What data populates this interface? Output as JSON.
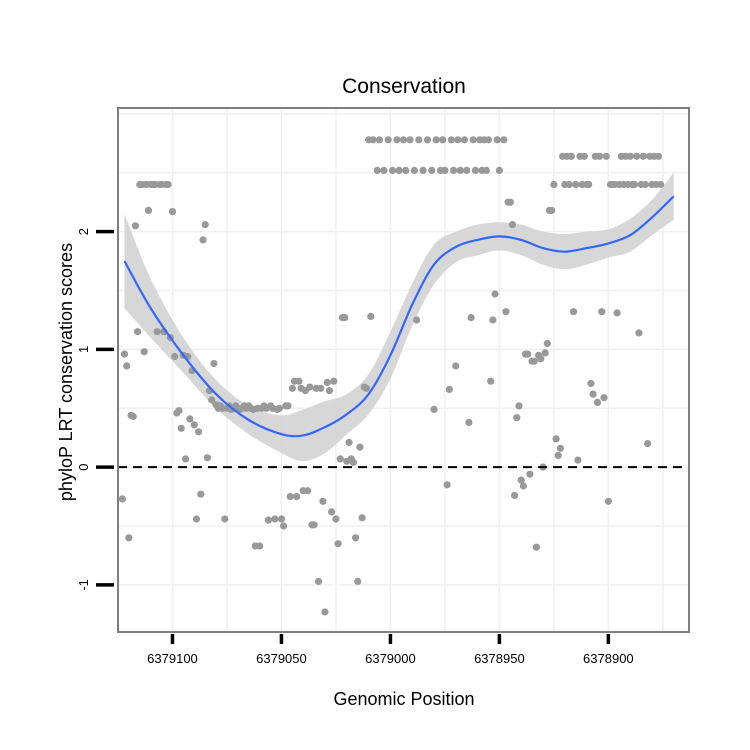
{
  "chart_data": {
    "type": "scatter",
    "title": "Conservation",
    "xlabel": "Genomic Position",
    "ylabel": "phyloP LRT conservation scores",
    "x_reversed": true,
    "xlim": [
      6379125,
      6378863
    ],
    "ylim": [
      -1.4,
      3.05
    ],
    "x_ticks": [
      6379100,
      6379050,
      6379000,
      6378950,
      6378900
    ],
    "x_tick_labels": [
      "6379100",
      "6379050",
      "6379000",
      "6378950",
      "6378900"
    ],
    "y_ticks": [
      -1,
      0,
      1,
      2
    ],
    "y_tick_labels": [
      "-1",
      "0",
      "1",
      "2"
    ],
    "reference_line": {
      "y": 0,
      "style": "dashed",
      "color": "#000000"
    },
    "colors": {
      "points": "#999999",
      "smooth": "#3366ff",
      "ribbon": "#d3d3d3",
      "panel_border": "#7f7f7f",
      "grid": "#f0f0f0"
    },
    "smooth": {
      "x": [
        6379122,
        6379110,
        6379095,
        6379080,
        6379065,
        6379050,
        6379040,
        6379030,
        6379020,
        6379010,
        6379000,
        6378990,
        6378980,
        6378970,
        6378960,
        6378950,
        6378940,
        6378930,
        6378920,
        6378910,
        6378900,
        6378890,
        6378880,
        6378870
      ],
      "y": [
        1.75,
        1.35,
        0.95,
        0.62,
        0.4,
        0.28,
        0.27,
        0.34,
        0.45,
        0.62,
        0.95,
        1.38,
        1.72,
        1.87,
        1.93,
        1.96,
        1.93,
        1.86,
        1.83,
        1.86,
        1.9,
        1.97,
        2.12,
        2.3
      ],
      "lower": [
        1.35,
        1.1,
        0.8,
        0.5,
        0.28,
        0.12,
        0.05,
        0.12,
        0.28,
        0.45,
        0.75,
        1.2,
        1.55,
        1.74,
        1.8,
        1.84,
        1.8,
        1.72,
        1.68,
        1.72,
        1.78,
        1.83,
        1.97,
        2.1
      ],
      "upper": [
        2.15,
        1.6,
        1.1,
        0.74,
        0.52,
        0.44,
        0.49,
        0.56,
        0.62,
        0.79,
        1.15,
        1.56,
        1.89,
        2.0,
        2.06,
        2.08,
        2.06,
        2.0,
        1.98,
        2.0,
        2.02,
        2.11,
        2.27,
        2.5
      ]
    },
    "points": [
      [
        6379123,
        -0.27
      ],
      [
        6379122,
        0.96
      ],
      [
        6379121,
        0.86
      ],
      [
        6379120,
        -0.6
      ],
      [
        6379119,
        0.44
      ],
      [
        6379118,
        0.43
      ],
      [
        6379117,
        2.05
      ],
      [
        6379116,
        1.15
      ],
      [
        6379115,
        2.4
      ],
      [
        6379114,
        2.4
      ],
      [
        6379113,
        0.98
      ],
      [
        6379112,
        2.4
      ],
      [
        6379111,
        2.18
      ],
      [
        6379110,
        2.4
      ],
      [
        6379109,
        2.4
      ],
      [
        6379108,
        2.4
      ],
      [
        6379107,
        1.15
      ],
      [
        6379106,
        2.4
      ],
      [
        6379105,
        2.4
      ],
      [
        6379104,
        1.15
      ],
      [
        6379103,
        2.4
      ],
      [
        6379102,
        2.4
      ],
      [
        6379101,
        1.1
      ],
      [
        6379100,
        2.17
      ],
      [
        6379099,
        0.94
      ],
      [
        6379098,
        0.46
      ],
      [
        6379097,
        0.48
      ],
      [
        6379096,
        0.33
      ],
      [
        6379095,
        0.95
      ],
      [
        6379094,
        0.07
      ],
      [
        6379093,
        0.94
      ],
      [
        6379092,
        0.41
      ],
      [
        6379091,
        0.82
      ],
      [
        6379090,
        0.36
      ],
      [
        6379089,
        -0.44
      ],
      [
        6379088,
        0.3
      ],
      [
        6379087,
        -0.23
      ],
      [
        6379086,
        1.93
      ],
      [
        6379085,
        2.06
      ],
      [
        6379084,
        0.08
      ],
      [
        6379083,
        0.65
      ],
      [
        6379082,
        0.57
      ],
      [
        6379081,
        0.88
      ],
      [
        6379080,
        0.53
      ],
      [
        6379079,
        0.5
      ],
      [
        6379078,
        0.52
      ],
      [
        6379077,
        0.5
      ],
      [
        6379076,
        -0.44
      ],
      [
        6379075,
        0.5
      ],
      [
        6379074,
        0.52
      ],
      [
        6379073,
        0.49
      ],
      [
        6379072,
        0.5
      ],
      [
        6379071,
        0.52
      ],
      [
        6379070,
        0.5
      ],
      [
        6379069,
        0.49
      ],
      [
        6379068,
        0.5
      ],
      [
        6379067,
        0.52
      ],
      [
        6379066,
        0.5
      ],
      [
        6379065,
        0.52
      ],
      [
        6379064,
        0.5
      ],
      [
        6379063,
        0.49
      ],
      [
        6379062,
        -0.67
      ],
      [
        6379061,
        0.5
      ],
      [
        6379060,
        -0.67
      ],
      [
        6379059,
        0.5
      ],
      [
        6379058,
        0.52
      ],
      [
        6379057,
        0.5
      ],
      [
        6379056,
        -0.45
      ],
      [
        6379055,
        0.52
      ],
      [
        6379054,
        0.5
      ],
      [
        6379053,
        -0.44
      ],
      [
        6379052,
        0.49
      ],
      [
        6379051,
        0.5
      ],
      [
        6379050,
        -0.44
      ],
      [
        6379049,
        -0.5
      ],
      [
        6379048,
        0.52
      ],
      [
        6379047,
        0.52
      ],
      [
        6379046,
        -0.25
      ],
      [
        6379045,
        0.67
      ],
      [
        6379044,
        0.73
      ],
      [
        6379043,
        -0.25
      ],
      [
        6379042,
        0.73
      ],
      [
        6379041,
        0.67
      ],
      [
        6379040,
        -0.2
      ],
      [
        6379039,
        0.65
      ],
      [
        6379038,
        -0.2
      ],
      [
        6379037,
        0.68
      ],
      [
        6379036,
        -0.49
      ],
      [
        6379035,
        -0.49
      ],
      [
        6379034,
        0.67
      ],
      [
        6379033,
        -0.97
      ],
      [
        6379032,
        0.67
      ],
      [
        6379031,
        -0.29
      ],
      [
        6379030,
        -1.23
      ],
      [
        6379029,
        0.72
      ],
      [
        6379028,
        0.65
      ],
      [
        6379027,
        -0.38
      ],
      [
        6379026,
        0.73
      ],
      [
        6379025,
        -0.44
      ],
      [
        6379024,
        -0.65
      ],
      [
        6379023,
        0.07
      ],
      [
        6379022,
        1.27
      ],
      [
        6379021,
        1.27
      ],
      [
        6379020,
        0.05
      ],
      [
        6379019,
        0.21
      ],
      [
        6379018,
        0.07
      ],
      [
        6379017,
        0.04
      ],
      [
        6379016,
        -0.6
      ],
      [
        6379015,
        -0.97
      ],
      [
        6379014,
        0.17
      ],
      [
        6379013,
        -0.43
      ],
      [
        6379012,
        0.68
      ],
      [
        6379011,
        0.67
      ],
      [
        6379010,
        2.78
      ],
      [
        6379009,
        1.28
      ],
      [
        6379008,
        2.78
      ],
      [
        6379006,
        2.52
      ],
      [
        6379005,
        2.78
      ],
      [
        6379003,
        2.52
      ],
      [
        6379001,
        2.78
      ],
      [
        6378999,
        2.52
      ],
      [
        6378997,
        2.78
      ],
      [
        6378996,
        2.52
      ],
      [
        6378994,
        2.78
      ],
      [
        6378993,
        2.52
      ],
      [
        6378991,
        2.78
      ],
      [
        6378989,
        2.52
      ],
      [
        6378988,
        1.25
      ],
      [
        6378987,
        2.78
      ],
      [
        6378985,
        2.52
      ],
      [
        6378983,
        2.78
      ],
      [
        6378981,
        2.52
      ],
      [
        6378980,
        0.49
      ],
      [
        6378979,
        2.78
      ],
      [
        6378977,
        2.52
      ],
      [
        6378976,
        2.78
      ],
      [
        6378975,
        2.52
      ],
      [
        6378974,
        -0.15
      ],
      [
        6378973,
        0.66
      ],
      [
        6378972,
        2.78
      ],
      [
        6378971,
        2.52
      ],
      [
        6378970,
        0.86
      ],
      [
        6378969,
        2.78
      ],
      [
        6378968,
        2.52
      ],
      [
        6378966,
        2.78
      ],
      [
        6378965,
        2.52
      ],
      [
        6378964,
        0.38
      ],
      [
        6378963,
        1.27
      ],
      [
        6378962,
        2.78
      ],
      [
        6378961,
        2.52
      ],
      [
        6378959,
        2.78
      ],
      [
        6378958,
        2.52
      ],
      [
        6378957,
        2.78
      ],
      [
        6378956,
        2.52
      ],
      [
        6378955,
        2.78
      ],
      [
        6378954,
        0.73
      ],
      [
        6378953,
        1.25
      ],
      [
        6378952,
        1.47
      ],
      [
        6378951,
        2.78
      ],
      [
        6378950,
        2.52
      ],
      [
        6378948,
        2.78
      ],
      [
        6378947,
        1.32
      ],
      [
        6378946,
        2.25
      ],
      [
        6378945,
        2.25
      ],
      [
        6378944,
        2.06
      ],
      [
        6378943,
        -0.24
      ],
      [
        6378942,
        0.42
      ],
      [
        6378941,
        0.52
      ],
      [
        6378940,
        -0.11
      ],
      [
        6378939,
        -0.16
      ],
      [
        6378938,
        0.96
      ],
      [
        6378937,
        0.96
      ],
      [
        6378936,
        -0.06
      ],
      [
        6378935,
        0.9
      ],
      [
        6378934,
        0.9
      ],
      [
        6378933,
        -0.68
      ],
      [
        6378932,
        0.95
      ],
      [
        6378931,
        0.92
      ],
      [
        6378930,
        0.0
      ],
      [
        6378929,
        0.97
      ],
      [
        6378928,
        1.05
      ],
      [
        6378927,
        2.18
      ],
      [
        6378926,
        2.18
      ],
      [
        6378925,
        2.4
      ],
      [
        6378924,
        0.24
      ],
      [
        6378923,
        0.1
      ],
      [
        6378922,
        0.16
      ],
      [
        6378921,
        2.64
      ],
      [
        6378920,
        2.4
      ],
      [
        6378919,
        2.64
      ],
      [
        6378918,
        2.4
      ],
      [
        6378917,
        2.64
      ],
      [
        6378916,
        1.32
      ],
      [
        6378915,
        2.4
      ],
      [
        6378914,
        0.06
      ],
      [
        6378913,
        2.64
      ],
      [
        6378912,
        2.4
      ],
      [
        6378911,
        2.64
      ],
      [
        6378910,
        2.4
      ],
      [
        6378909,
        2.4
      ],
      [
        6378908,
        0.71
      ],
      [
        6378907,
        0.62
      ],
      [
        6378906,
        2.64
      ],
      [
        6378905,
        0.55
      ],
      [
        6378904,
        2.64
      ],
      [
        6378903,
        1.32
      ],
      [
        6378902,
        0.59
      ],
      [
        6378901,
        2.64
      ],
      [
        6378900,
        -0.29
      ],
      [
        6378899,
        2.4
      ],
      [
        6378898,
        2.4
      ],
      [
        6378897,
        2.4
      ],
      [
        6378896,
        1.31
      ],
      [
        6378895,
        2.4
      ],
      [
        6378894,
        2.64
      ],
      [
        6378893,
        2.4
      ],
      [
        6378892,
        2.64
      ],
      [
        6378891,
        2.4
      ],
      [
        6378890,
        2.64
      ],
      [
        6378889,
        2.4
      ],
      [
        6378888,
        2.4
      ],
      [
        6378887,
        2.64
      ],
      [
        6378886,
        1.14
      ],
      [
        6378885,
        2.4
      ],
      [
        6378884,
        2.64
      ],
      [
        6378883,
        2.4
      ],
      [
        6378882,
        0.2
      ],
      [
        6378881,
        2.64
      ],
      [
        6378880,
        2.4
      ],
      [
        6378879,
        2.64
      ],
      [
        6378878,
        2.4
      ],
      [
        6378877,
        2.64
      ],
      [
        6378876,
        2.4
      ]
    ]
  }
}
